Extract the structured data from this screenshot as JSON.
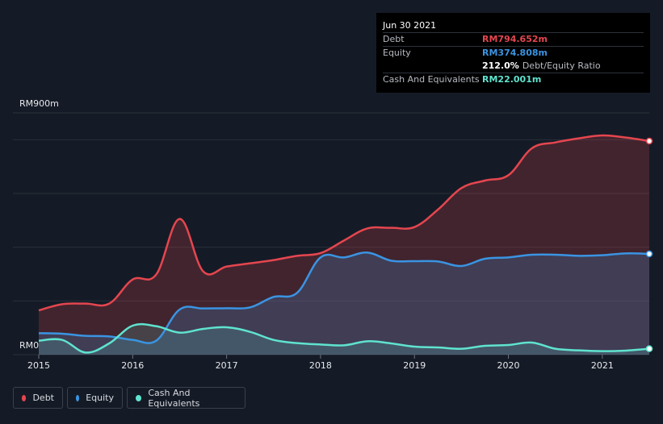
{
  "tooltip": {
    "date": "Jun 30 2021",
    "debt_label": "Debt",
    "debt_value": "RM794.652m",
    "equity_label": "Equity",
    "equity_value": "RM374.808m",
    "ratio_value": "212.0%",
    "ratio_label": "Debt/Equity Ratio",
    "cash_label": "Cash And Equivalents",
    "cash_value": "RM22.001m"
  },
  "legend": {
    "debt": "Debt",
    "equity": "Equity",
    "cash": "Cash And Equivalents"
  },
  "colors": {
    "debt": "#e5464f",
    "equity": "#3a94e2",
    "cash": "#5fe3cf",
    "background": "#151b26"
  },
  "chart_data": {
    "type": "area",
    "title": "",
    "y_top_label": "RM900m",
    "y_bottom_label": "RM0",
    "ylim": [
      0,
      900
    ],
    "xlim": [
      2015.0,
      2021.5
    ],
    "x_ticks": [
      "2015",
      "2016",
      "2017",
      "2018",
      "2019",
      "2020",
      "2021"
    ],
    "series": [
      {
        "name": "Debt",
        "points": [
          [
            2015.0,
            165
          ],
          [
            2015.25,
            188
          ],
          [
            2015.5,
            190
          ],
          [
            2015.75,
            190
          ],
          [
            2016.0,
            280
          ],
          [
            2016.25,
            298
          ],
          [
            2016.5,
            505
          ],
          [
            2016.75,
            310
          ],
          [
            2017.0,
            328
          ],
          [
            2017.25,
            340
          ],
          [
            2017.5,
            352
          ],
          [
            2017.75,
            368
          ],
          [
            2018.0,
            378
          ],
          [
            2018.25,
            425
          ],
          [
            2018.5,
            470
          ],
          [
            2018.75,
            472
          ],
          [
            2019.0,
            475
          ],
          [
            2019.25,
            540
          ],
          [
            2019.5,
            620
          ],
          [
            2019.75,
            648
          ],
          [
            2020.0,
            668
          ],
          [
            2020.25,
            768
          ],
          [
            2020.5,
            790
          ],
          [
            2020.75,
            805
          ],
          [
            2021.0,
            816
          ],
          [
            2021.25,
            808
          ],
          [
            2021.5,
            795
          ]
        ]
      },
      {
        "name": "Equity",
        "points": [
          [
            2015.0,
            80
          ],
          [
            2015.25,
            78
          ],
          [
            2015.5,
            70
          ],
          [
            2015.75,
            68
          ],
          [
            2016.0,
            55
          ],
          [
            2016.25,
            52
          ],
          [
            2016.5,
            168
          ],
          [
            2016.75,
            172
          ],
          [
            2017.0,
            173
          ],
          [
            2017.25,
            176
          ],
          [
            2017.5,
            215
          ],
          [
            2017.75,
            230
          ],
          [
            2018.0,
            362
          ],
          [
            2018.25,
            362
          ],
          [
            2018.5,
            380
          ],
          [
            2018.75,
            350
          ],
          [
            2019.0,
            348
          ],
          [
            2019.25,
            347
          ],
          [
            2019.5,
            330
          ],
          [
            2019.75,
            357
          ],
          [
            2020.0,
            362
          ],
          [
            2020.25,
            372
          ],
          [
            2020.5,
            372
          ],
          [
            2020.75,
            368
          ],
          [
            2021.0,
            370
          ],
          [
            2021.25,
            377
          ],
          [
            2021.5,
            375
          ]
        ]
      },
      {
        "name": "Cash And Equivalents",
        "points": [
          [
            2015.0,
            52
          ],
          [
            2015.25,
            55
          ],
          [
            2015.5,
            8
          ],
          [
            2015.75,
            42
          ],
          [
            2016.0,
            108
          ],
          [
            2016.25,
            106
          ],
          [
            2016.5,
            82
          ],
          [
            2016.75,
            96
          ],
          [
            2017.0,
            102
          ],
          [
            2017.25,
            85
          ],
          [
            2017.5,
            55
          ],
          [
            2017.75,
            43
          ],
          [
            2018.0,
            38
          ],
          [
            2018.25,
            35
          ],
          [
            2018.5,
            50
          ],
          [
            2018.75,
            42
          ],
          [
            2019.0,
            30
          ],
          [
            2019.25,
            27
          ],
          [
            2019.5,
            22
          ],
          [
            2019.75,
            33
          ],
          [
            2020.0,
            36
          ],
          [
            2020.25,
            45
          ],
          [
            2020.5,
            22
          ],
          [
            2020.75,
            16
          ],
          [
            2021.0,
            13
          ],
          [
            2021.25,
            15
          ],
          [
            2021.5,
            22
          ]
        ]
      }
    ]
  }
}
